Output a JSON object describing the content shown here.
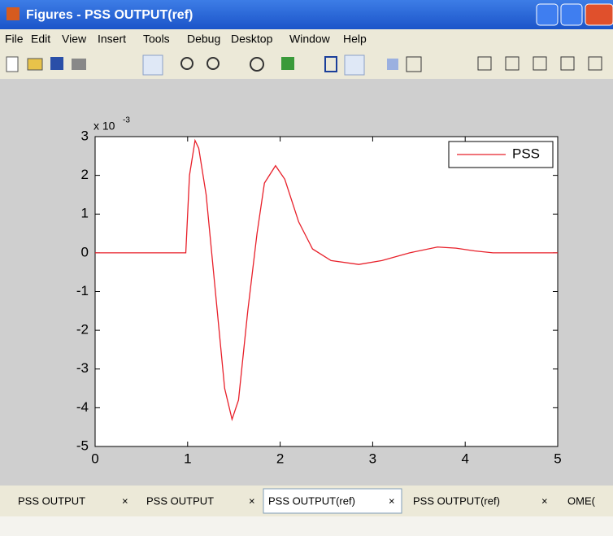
{
  "window": {
    "title": "Figures - PSS OUTPUT(ref)"
  },
  "menu": [
    "File",
    "Edit",
    "View",
    "Insert",
    "Tools",
    "Debug",
    "Desktop",
    "Window",
    "Help"
  ],
  "tabs": [
    "PSS OUTPUT",
    "PSS OUTPUT",
    "PSS OUTPUT(ref)",
    "PSS OUTPUT(ref)",
    "OME("
  ],
  "chart_data": {
    "type": "line",
    "x": [
      0,
      0.98,
      1.02,
      1.08,
      1.12,
      1.2,
      1.3,
      1.4,
      1.48,
      1.55,
      1.65,
      1.75,
      1.83,
      1.95,
      2.05,
      2.2,
      2.35,
      2.55,
      2.85,
      3.1,
      3.4,
      3.7,
      3.9,
      4.1,
      4.3,
      5
    ],
    "series": [
      {
        "name": "PSS",
        "color": "#e8202a",
        "values": [
          0,
          0,
          2.0,
          2.9,
          2.7,
          1.5,
          -1.0,
          -3.5,
          -4.3,
          -3.8,
          -1.5,
          0.5,
          1.8,
          2.25,
          1.9,
          0.8,
          0.1,
          -0.2,
          -0.3,
          -0.2,
          0,
          0.15,
          0.12,
          0.05,
          0,
          0
        ]
      }
    ],
    "xlim": [
      0,
      5
    ],
    "ylim": [
      -5,
      3
    ],
    "xticks": [
      0,
      1,
      2,
      3,
      4,
      5
    ],
    "yticks": [
      -5,
      -4,
      -3,
      -2,
      -1,
      0,
      1,
      2,
      3
    ],
    "y_multiplier": {
      "base": "x 10",
      "exponent": "-3"
    },
    "legend": "upper right"
  }
}
